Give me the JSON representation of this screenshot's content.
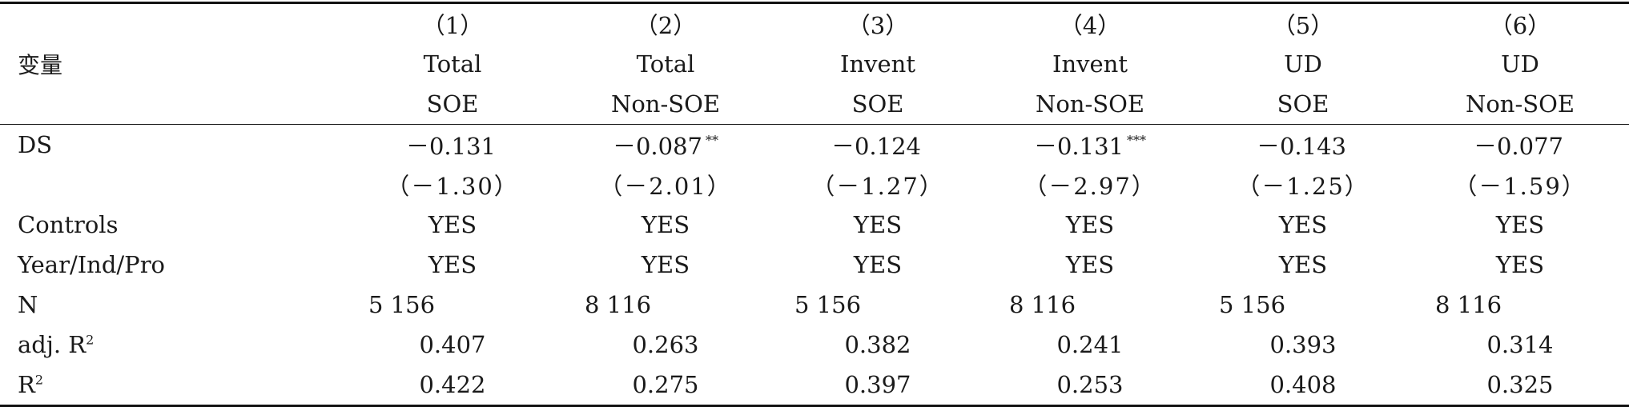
{
  "table": {
    "variable_label": "变量",
    "columns": [
      {
        "num": "（1）",
        "dep": "Total",
        "sample": "SOE"
      },
      {
        "num": "（2）",
        "dep": "Total",
        "sample": "Non-SOE"
      },
      {
        "num": "（3）",
        "dep": "Invent",
        "sample": "SOE"
      },
      {
        "num": "（4）",
        "dep": "Invent",
        "sample": "Non-SOE"
      },
      {
        "num": "（5）",
        "dep": "UD",
        "sample": "SOE"
      },
      {
        "num": "（6）",
        "dep": "UD",
        "sample": "Non-SOE"
      }
    ],
    "rows": {
      "ds": {
        "label": "DS",
        "coef": [
          "－0.131",
          "－0.087",
          "－0.124",
          "－0.131",
          "－0.143",
          "－0.077"
        ],
        "stars": [
          "",
          "**",
          "",
          "***",
          "",
          ""
        ],
        "tstat": [
          "（－1.30）",
          "（－2.01）",
          "（－1.27）",
          "（－2.97）",
          "（－1.25）",
          "（－1.59）"
        ]
      },
      "controls": {
        "label": "Controls",
        "values": [
          "YES",
          "YES",
          "YES",
          "YES",
          "YES",
          "YES"
        ]
      },
      "fe": {
        "label": "Year/Ind/Pro",
        "values": [
          "YES",
          "YES",
          "YES",
          "YES",
          "YES",
          "YES"
        ]
      },
      "n": {
        "label": "N",
        "values": [
          "5 156",
          "8 116",
          "5 156",
          "8 116",
          "5 156",
          "8 116"
        ]
      },
      "adj_r2": {
        "label": "adj. R",
        "sup": "2",
        "values": [
          "0.407",
          "0.263",
          "0.382",
          "0.241",
          "0.393",
          "0.314"
        ]
      },
      "r2": {
        "label": "R",
        "sup": "2",
        "values": [
          "0.422",
          "0.275",
          "0.397",
          "0.253",
          "0.408",
          "0.325"
        ]
      }
    }
  }
}
